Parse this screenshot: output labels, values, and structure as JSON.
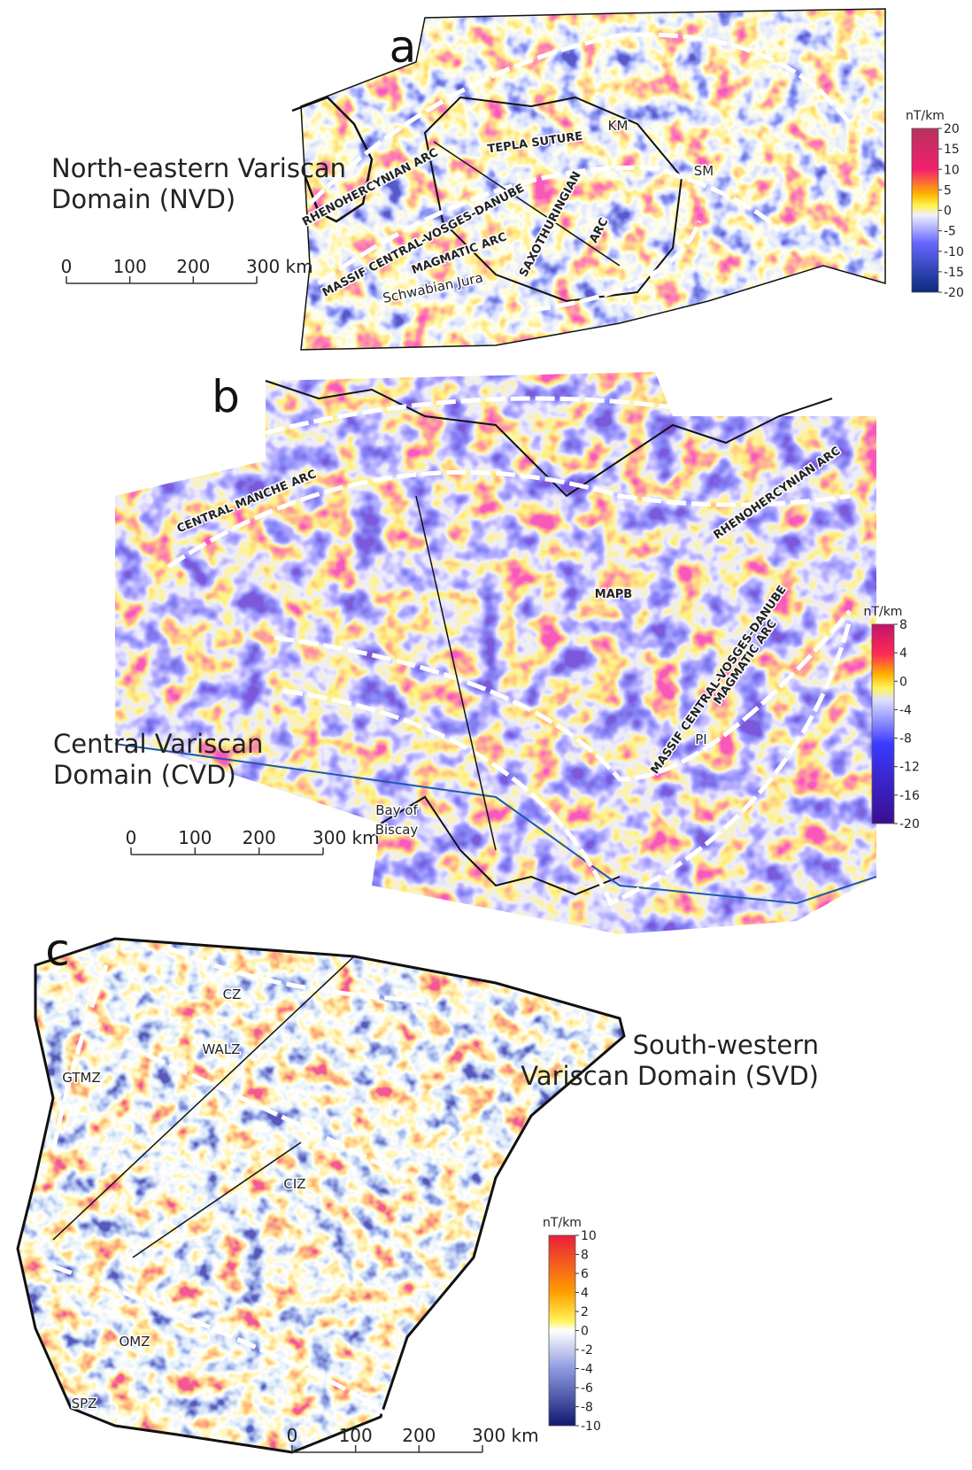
{
  "panels": [
    {
      "label": "a",
      "domain_title": [
        "North-eastern Variscan",
        "Domain (NVD)"
      ],
      "colorbar": {
        "unit": "nT/km",
        "ticks": [
          "20",
          "15",
          "10",
          "5",
          "0",
          "-5",
          "-10",
          "-15",
          "-20"
        ]
      },
      "scalebar": [
        "0",
        "100",
        "200",
        "300 km"
      ],
      "map_labels": [
        "RHENOHERCYNIAN ARC",
        "TEPLA SUTURE",
        "KM",
        "SM",
        "SAXOTHURINGIAN",
        "ARC",
        "MASSIF CENTRAL-VOSGES-DANUBE",
        "MAGMATIC ARC",
        "Schwabian Jura"
      ]
    },
    {
      "label": "b",
      "domain_title": [
        "Central Variscan",
        "Domain (CVD)"
      ],
      "colorbar": {
        "unit": "nT/km",
        "ticks": [
          "8",
          "4",
          "0",
          "-4",
          "-8",
          "-12",
          "-16",
          "-20"
        ]
      },
      "scalebar": [
        "0",
        "100",
        "200",
        "300 km"
      ],
      "map_labels": [
        "CENTRAL MANCHE ARC",
        "RHENOHERCYNIAN ARC",
        "MAPB",
        "MASSIF CENTRAL-VOSGES-DANUBE",
        "MAGMATIC ARC",
        "PI",
        "Bay of",
        "Biscay"
      ]
    },
    {
      "label": "c",
      "domain_title": [
        "South-western",
        "Variscan Domain (SVD)"
      ],
      "colorbar": {
        "unit": "nT/km",
        "ticks": [
          "10",
          "8",
          "6",
          "4",
          "2",
          "0",
          "-2",
          "-4",
          "-6",
          "-8",
          "-10"
        ]
      },
      "scalebar": [
        "0",
        "100",
        "200",
        "300 km"
      ],
      "map_labels": [
        "CZ",
        "WALZ",
        "GTMZ",
        "CIZ",
        "OMZ",
        "SPZ"
      ]
    }
  ]
}
